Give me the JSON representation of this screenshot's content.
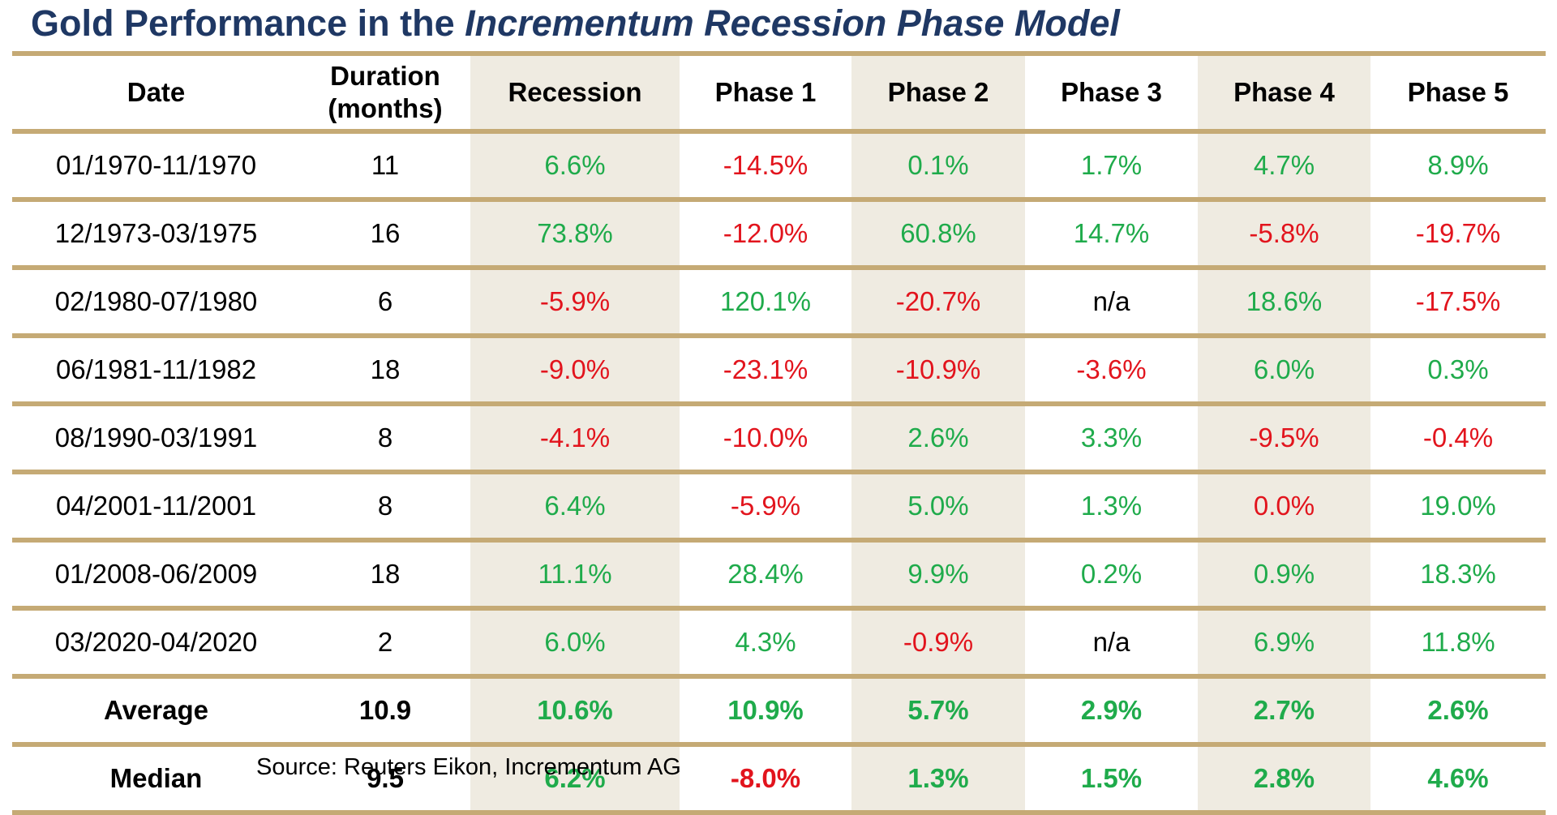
{
  "title": {
    "prefix": "Gold Performance in the ",
    "italic": "Incrementum Recession Phase Model"
  },
  "colors": {
    "title": "#1f3864",
    "positive": "#1fab4b",
    "negative": "#e2141d",
    "rule": "#c5aa75",
    "shaded_column": "#efebe1"
  },
  "chart_data": {
    "type": "table",
    "columns": [
      "Date",
      "Duration (months)",
      "Recession",
      "Phase 1",
      "Phase 2",
      "Phase 3",
      "Phase 4",
      "Phase 5"
    ],
    "header_lines": [
      [
        "Date"
      ],
      [
        "Duration",
        "(months)"
      ],
      [
        "Recession"
      ],
      [
        "Phase 1"
      ],
      [
        "Phase 2"
      ],
      [
        "Phase 3"
      ],
      [
        "Phase 4"
      ],
      [
        "Phase 5"
      ]
    ],
    "rows": [
      [
        "01/1970-11/1970",
        "11",
        "6.6%",
        "-14.5%",
        "0.1%",
        "1.7%",
        "4.7%",
        "8.9%"
      ],
      [
        "12/1973-03/1975",
        "16",
        "73.8%",
        "-12.0%",
        "60.8%",
        "14.7%",
        "-5.8%",
        "-19.7%"
      ],
      [
        "02/1980-07/1980",
        "6",
        "-5.9%",
        "120.1%",
        "-20.7%",
        "n/a",
        "18.6%",
        "-17.5%"
      ],
      [
        "06/1981-11/1982",
        "18",
        "-9.0%",
        "-23.1%",
        "-10.9%",
        "-3.6%",
        "6.0%",
        "0.3%"
      ],
      [
        "08/1990-03/1991",
        "8",
        "-4.1%",
        "-10.0%",
        "2.6%",
        "3.3%",
        "-9.5%",
        "-0.4%"
      ],
      [
        "04/2001-11/2001",
        "8",
        "6.4%",
        "-5.9%",
        "5.0%",
        "1.3%",
        "0.0%",
        "19.0%"
      ],
      [
        "01/2008-06/2009",
        "18",
        "11.1%",
        "28.4%",
        "9.9%",
        "0.2%",
        "0.9%",
        "18.3%"
      ],
      [
        "03/2020-04/2020",
        "2",
        "6.0%",
        "4.3%",
        "-0.9%",
        "n/a",
        "6.9%",
        "11.8%"
      ]
    ],
    "summary_rows": [
      [
        "Average",
        "10.9",
        "10.6%",
        "10.9%",
        "5.7%",
        "2.9%",
        "2.7%",
        "2.6%"
      ],
      [
        "Median",
        "9.5",
        "6.2%",
        "-8.0%",
        "1.3%",
        "1.5%",
        "2.8%",
        "4.6%"
      ]
    ],
    "cell_colors": {
      "01/1970-11/1970": [
        "pos",
        "neg",
        "pos",
        "pos",
        "pos",
        "pos"
      ],
      "12/1973-03/1975": [
        "pos",
        "neg",
        "pos",
        "pos",
        "neg",
        "neg"
      ],
      "02/1980-07/1980": [
        "neg",
        "pos",
        "neg",
        "na",
        "pos",
        "neg"
      ],
      "06/1981-11/1982": [
        "neg",
        "neg",
        "neg",
        "neg",
        "pos",
        "pos"
      ],
      "08/1990-03/1991": [
        "neg",
        "neg",
        "pos",
        "pos",
        "neg",
        "neg"
      ],
      "04/2001-11/2001": [
        "pos",
        "neg",
        "pos",
        "pos",
        "neg",
        "pos"
      ],
      "01/2008-06/2009": [
        "pos",
        "pos",
        "pos",
        "pos",
        "pos",
        "pos"
      ],
      "03/2020-04/2020": [
        "pos",
        "pos",
        "neg",
        "na",
        "pos",
        "pos"
      ],
      "Average": [
        "pos",
        "pos",
        "pos",
        "pos",
        "pos",
        "pos"
      ],
      "Median": [
        "pos",
        "neg",
        "pos",
        "pos",
        "pos",
        "pos"
      ]
    },
    "shaded_columns": [
      "Recession",
      "Phase 2",
      "Phase 4"
    ]
  },
  "source": "Source: Reuters Eikon, Incrementum AG"
}
